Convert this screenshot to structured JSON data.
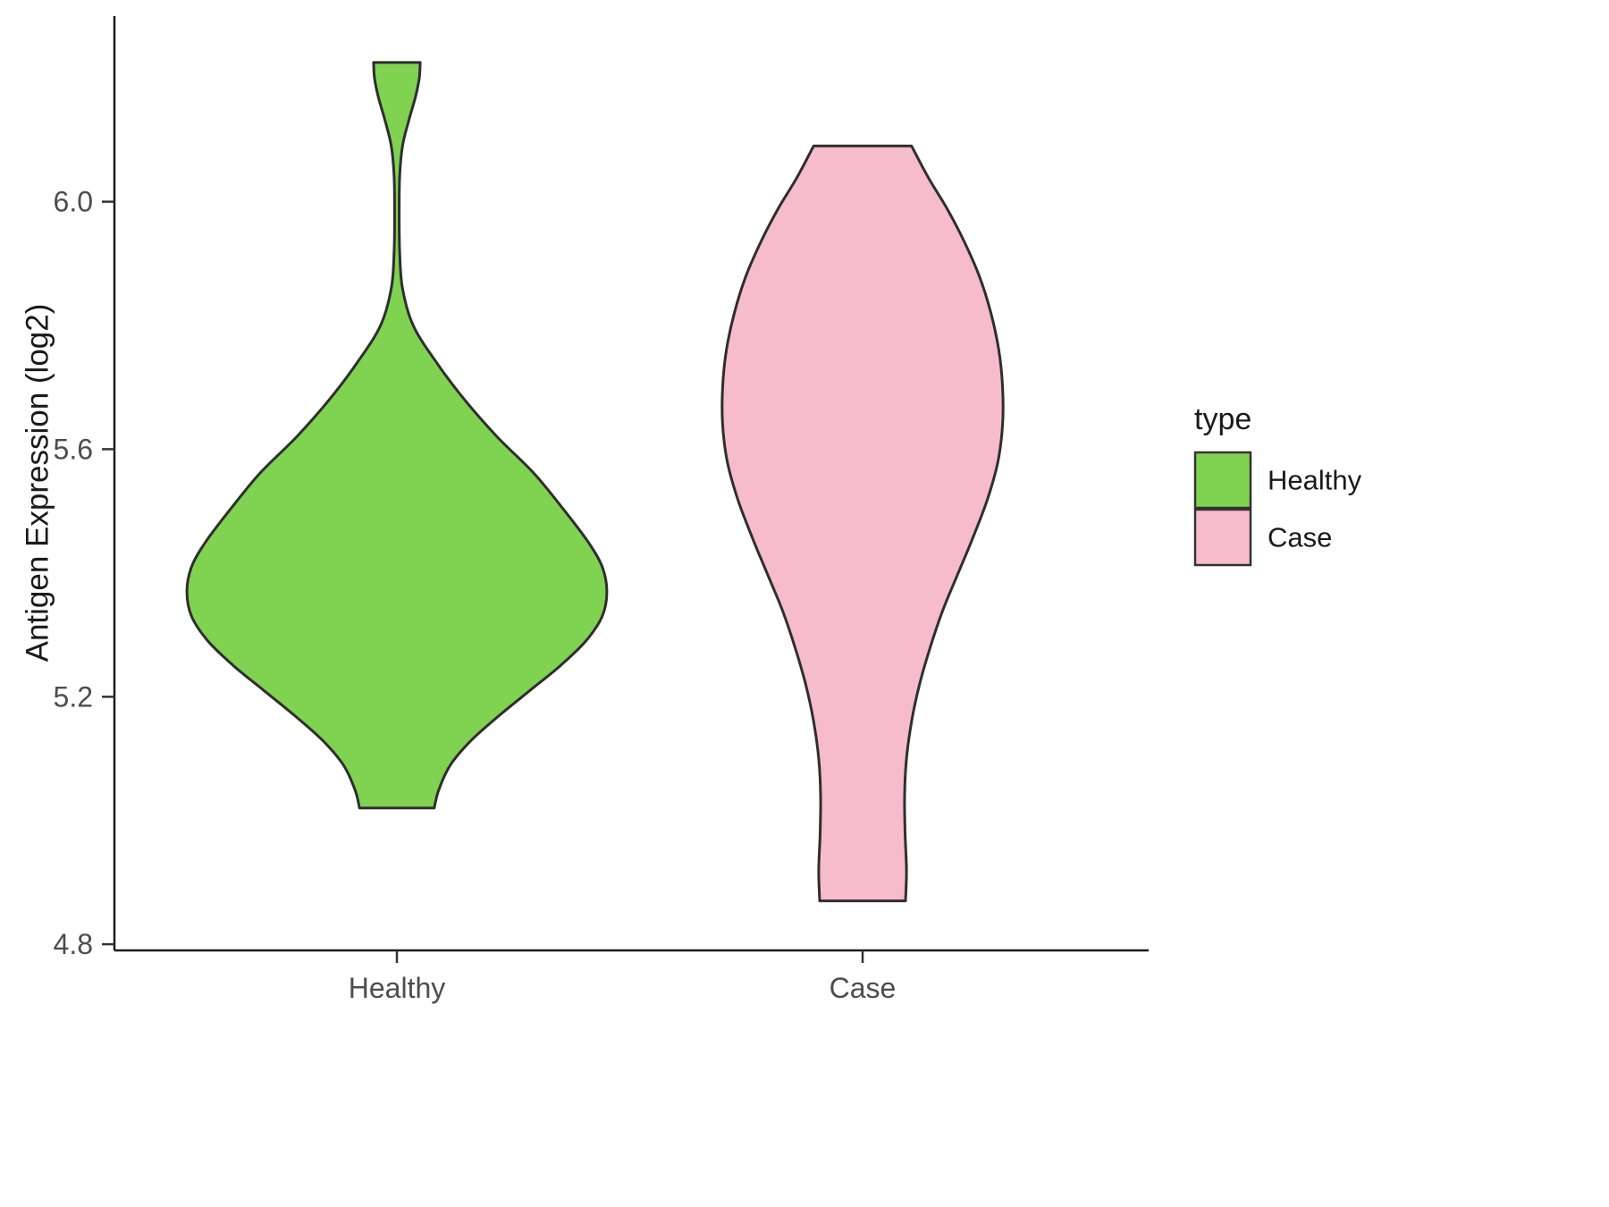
{
  "chart_data": {
    "type": "violin",
    "title": "",
    "xlabel": "",
    "ylabel": "Antigen Expression (log2)",
    "categories": [
      "Healthy",
      "Case"
    ],
    "ylim": [
      4.79,
      6.3
    ],
    "ytick_labels": [
      "4.8",
      "5.2",
      "5.6",
      "6.0"
    ],
    "grid": false,
    "outline_color": "#2e2e2e",
    "axis_color": "#1a1a1a",
    "tick_label_color": "#4D4D4D",
    "legend": {
      "title": "type",
      "position": "right",
      "entries": [
        {
          "label": "Healthy",
          "color": "#80D251"
        },
        {
          "label": "Case",
          "color": "#F6BCCB"
        }
      ]
    },
    "series": [
      {
        "name": "Healthy",
        "color": "#80D251",
        "profile": [
          [
            6.225,
            0.05
          ],
          [
            6.2,
            0.048
          ],
          [
            6.17,
            0.04
          ],
          [
            6.13,
            0.025
          ],
          [
            6.09,
            0.012
          ],
          [
            6.04,
            0.006
          ],
          [
            5.98,
            0.005
          ],
          [
            5.92,
            0.006
          ],
          [
            5.86,
            0.012
          ],
          [
            5.8,
            0.035
          ],
          [
            5.74,
            0.085
          ],
          [
            5.68,
            0.145
          ],
          [
            5.62,
            0.215
          ],
          [
            5.56,
            0.295
          ],
          [
            5.5,
            0.36
          ],
          [
            5.45,
            0.41
          ],
          [
            5.41,
            0.44
          ],
          [
            5.37,
            0.45
          ],
          [
            5.33,
            0.44
          ],
          [
            5.29,
            0.405
          ],
          [
            5.25,
            0.35
          ],
          [
            5.21,
            0.285
          ],
          [
            5.17,
            0.22
          ],
          [
            5.13,
            0.16
          ],
          [
            5.09,
            0.115
          ],
          [
            5.05,
            0.09
          ],
          [
            5.02,
            0.08
          ]
        ]
      },
      {
        "name": "Case",
        "color": "#F6BCCB",
        "profile": [
          [
            6.09,
            0.105
          ],
          [
            6.04,
            0.14
          ],
          [
            5.99,
            0.18
          ],
          [
            5.94,
            0.215
          ],
          [
            5.88,
            0.25
          ],
          [
            5.82,
            0.275
          ],
          [
            5.76,
            0.292
          ],
          [
            5.7,
            0.3
          ],
          [
            5.64,
            0.3
          ],
          [
            5.58,
            0.29
          ],
          [
            5.52,
            0.268
          ],
          [
            5.46,
            0.238
          ],
          [
            5.4,
            0.205
          ],
          [
            5.34,
            0.172
          ],
          [
            5.28,
            0.145
          ],
          [
            5.22,
            0.122
          ],
          [
            5.16,
            0.105
          ],
          [
            5.1,
            0.094
          ],
          [
            5.04,
            0.09
          ],
          [
            4.98,
            0.091
          ],
          [
            4.92,
            0.094
          ],
          [
            4.87,
            0.092
          ]
        ]
      }
    ]
  }
}
